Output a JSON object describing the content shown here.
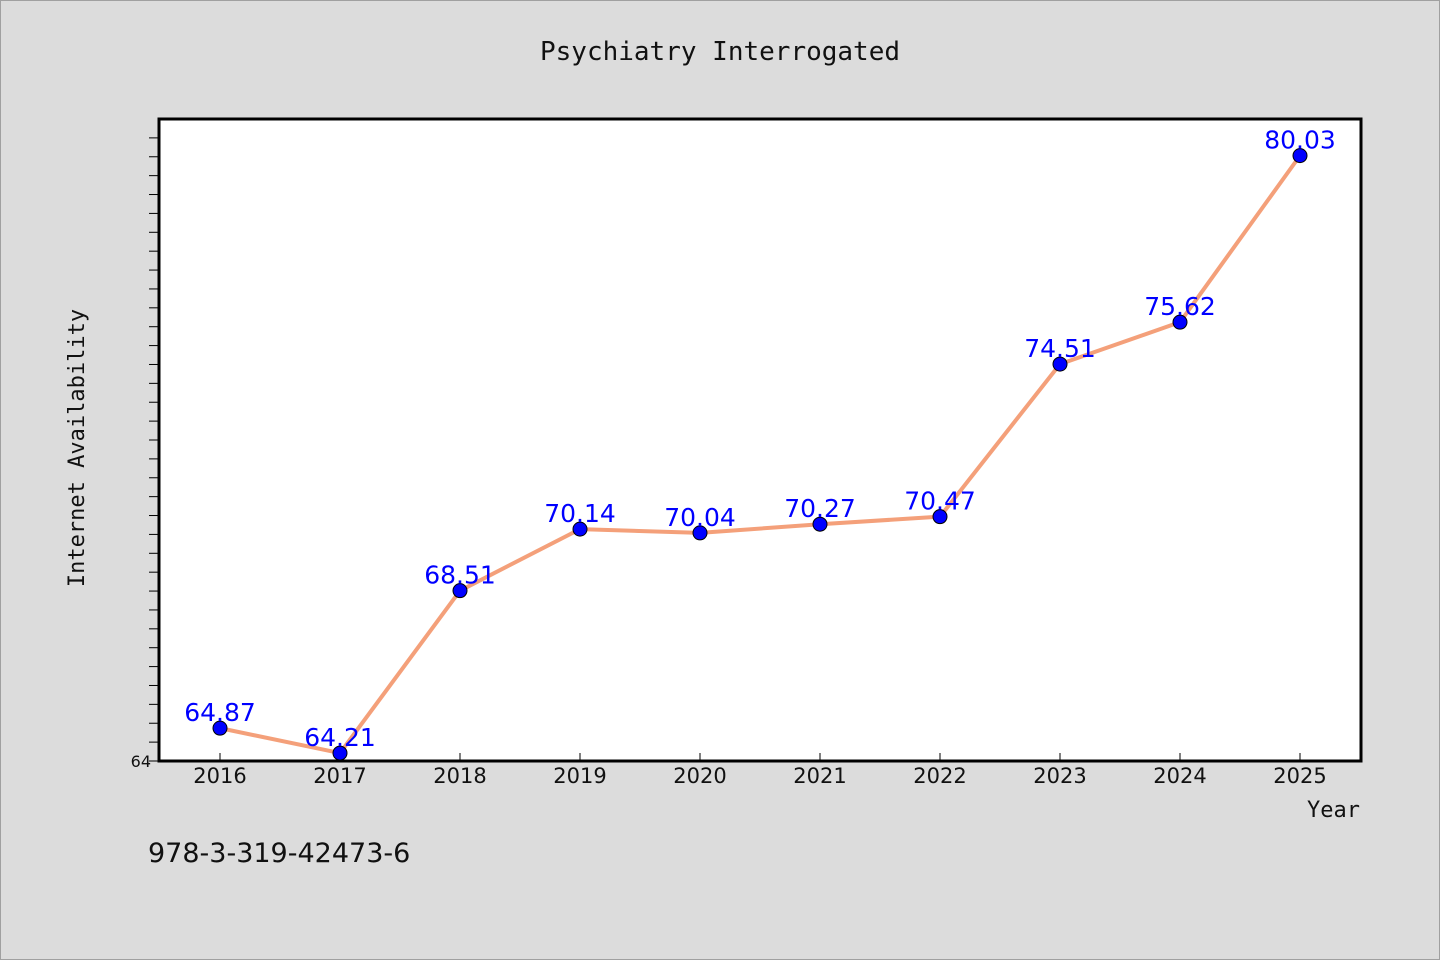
{
  "chart_data": {
    "type": "line",
    "title": "Psychiatry Interrogated",
    "xlabel": "Year",
    "ylabel": "Internet Availability",
    "categories": [
      "2016",
      "2017",
      "2018",
      "2019",
      "2020",
      "2021",
      "2022",
      "2023",
      "2024",
      "2025"
    ],
    "series": [
      {
        "values": [
          64.87,
          64.21,
          68.51,
          70.14,
          70.04,
          70.27,
          70.47,
          74.51,
          75.62,
          80.03
        ],
        "data_labels": [
          "64.87",
          "64.21",
          "68.51",
          "70.14",
          "70.04",
          "70.27",
          "70.47",
          "74.51",
          "75.62",
          "80.03"
        ],
        "line_color": "#f4a07a",
        "marker_color": "#0000ff"
      }
    ],
    "ylim": [
      64,
      81
    ],
    "y_tick_labels": [
      "64"
    ],
    "grid": false,
    "legend": "none"
  },
  "footnote": "978-3-319-42473-6",
  "colors": {
    "background": "#dcdcdc",
    "plot_background": "#ffffff",
    "label_color": "#0000ff"
  }
}
